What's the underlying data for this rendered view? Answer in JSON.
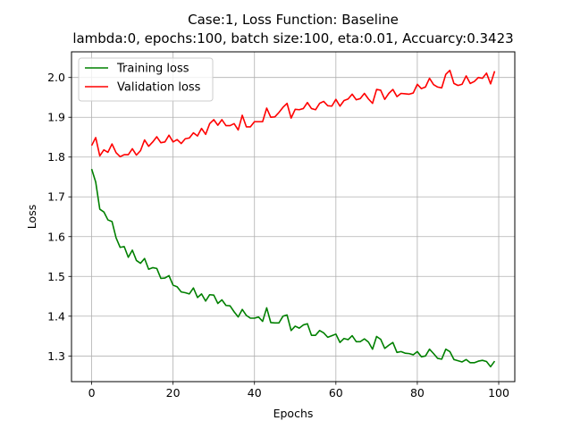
{
  "chart_data": {
    "type": "line",
    "title": "Case:1, Loss Function: Baseline",
    "subtitle": "lambda:0, epochs:100, batch size:100, eta:0.01, Accuarcy:0.3423",
    "xlabel": "Epochs",
    "ylabel": "Loss",
    "xlim": [
      -4.95,
      103.95
    ],
    "ylim": [
      1.2355,
      2.0645
    ],
    "xticks": [
      0,
      20,
      40,
      60,
      80,
      100
    ],
    "xtick_labels": [
      "0",
      "20",
      "40",
      "60",
      "80",
      "100"
    ],
    "yticks": [
      1.3,
      1.4,
      1.5,
      1.6,
      1.7,
      1.8,
      1.9,
      2.0
    ],
    "ytick_labels": [
      "1.3",
      "1.4",
      "1.5",
      "1.6",
      "1.7",
      "1.8",
      "1.9",
      "2.0"
    ],
    "grid": true,
    "legend_position": "upper-left",
    "series": [
      {
        "name": "Training loss",
        "color": "#008000",
        "x": [
          0,
          1,
          2,
          3,
          4,
          5,
          6,
          7,
          8,
          9,
          10,
          11,
          12,
          13,
          14,
          15,
          16,
          17,
          18,
          19,
          20,
          21,
          22,
          23,
          24,
          25,
          26,
          27,
          28,
          29,
          30,
          31,
          32,
          33,
          34,
          35,
          36,
          37,
          38,
          39,
          40,
          41,
          42,
          43,
          44,
          45,
          46,
          47,
          48,
          49,
          50,
          51,
          52,
          53,
          54,
          55,
          56,
          57,
          58,
          59,
          60,
          61,
          62,
          63,
          64,
          65,
          66,
          67,
          68,
          69,
          70,
          71,
          72,
          73,
          74,
          75,
          76,
          77,
          78,
          79,
          80,
          81,
          82,
          83,
          84,
          85,
          86,
          87,
          88,
          89,
          90,
          91,
          92,
          93,
          94,
          95,
          96,
          97,
          98,
          99
        ],
        "values": [
          1.77,
          1.737,
          1.669,
          1.662,
          1.642,
          1.638,
          1.597,
          1.573,
          1.575,
          1.548,
          1.566,
          1.54,
          1.533,
          1.545,
          1.518,
          1.522,
          1.52,
          1.495,
          1.496,
          1.502,
          1.478,
          1.474,
          1.461,
          1.459,
          1.456,
          1.471,
          1.447,
          1.456,
          1.438,
          1.454,
          1.453,
          1.432,
          1.441,
          1.427,
          1.426,
          1.411,
          1.398,
          1.417,
          1.402,
          1.395,
          1.395,
          1.398,
          1.387,
          1.421,
          1.384,
          1.383,
          1.383,
          1.4,
          1.403,
          1.364,
          1.375,
          1.37,
          1.378,
          1.381,
          1.352,
          1.352,
          1.364,
          1.358,
          1.347,
          1.351,
          1.355,
          1.334,
          1.344,
          1.341,
          1.351,
          1.336,
          1.336,
          1.343,
          1.335,
          1.317,
          1.349,
          1.342,
          1.319,
          1.327,
          1.334,
          1.309,
          1.311,
          1.307,
          1.306,
          1.303,
          1.311,
          1.298,
          1.3,
          1.317,
          1.306,
          1.294,
          1.292,
          1.317,
          1.311,
          1.291,
          1.288,
          1.285,
          1.291,
          1.283,
          1.283,
          1.287,
          1.289,
          1.286,
          1.273,
          1.287
        ]
      },
      {
        "name": "Validation loss",
        "color": "#ff0000",
        "x": [
          0,
          1,
          2,
          3,
          4,
          5,
          6,
          7,
          8,
          9,
          10,
          11,
          12,
          13,
          14,
          15,
          16,
          17,
          18,
          19,
          20,
          21,
          22,
          23,
          24,
          25,
          26,
          27,
          28,
          29,
          30,
          31,
          32,
          33,
          34,
          35,
          36,
          37,
          38,
          39,
          40,
          41,
          42,
          43,
          44,
          45,
          46,
          47,
          48,
          49,
          50,
          51,
          52,
          53,
          54,
          55,
          56,
          57,
          58,
          59,
          60,
          61,
          62,
          63,
          64,
          65,
          66,
          67,
          68,
          69,
          70,
          71,
          72,
          73,
          74,
          75,
          76,
          77,
          78,
          79,
          80,
          81,
          82,
          83,
          84,
          85,
          86,
          87,
          88,
          89,
          90,
          91,
          92,
          93,
          94,
          95,
          96,
          97,
          98,
          99
        ],
        "values": [
          1.829,
          1.849,
          1.803,
          1.818,
          1.812,
          1.833,
          1.811,
          1.801,
          1.806,
          1.806,
          1.821,
          1.805,
          1.816,
          1.843,
          1.827,
          1.838,
          1.851,
          1.836,
          1.838,
          1.855,
          1.838,
          1.844,
          1.834,
          1.846,
          1.848,
          1.861,
          1.853,
          1.872,
          1.857,
          1.884,
          1.894,
          1.88,
          1.894,
          1.879,
          1.879,
          1.884,
          1.868,
          1.905,
          1.876,
          1.876,
          1.889,
          1.889,
          1.889,
          1.923,
          1.9,
          1.901,
          1.912,
          1.925,
          1.935,
          1.898,
          1.92,
          1.919,
          1.922,
          1.937,
          1.922,
          1.919,
          1.935,
          1.94,
          1.929,
          1.928,
          1.945,
          1.928,
          1.942,
          1.946,
          1.958,
          1.944,
          1.947,
          1.96,
          1.946,
          1.935,
          1.97,
          1.968,
          1.945,
          1.96,
          1.97,
          1.952,
          1.96,
          1.959,
          1.958,
          1.961,
          1.983,
          1.972,
          1.976,
          1.998,
          1.982,
          1.976,
          1.974,
          2.008,
          2.018,
          1.985,
          1.98,
          1.983,
          2.004,
          1.985,
          1.99,
          2.0,
          1.998,
          2.011,
          1.984,
          2.016
        ]
      }
    ]
  }
}
